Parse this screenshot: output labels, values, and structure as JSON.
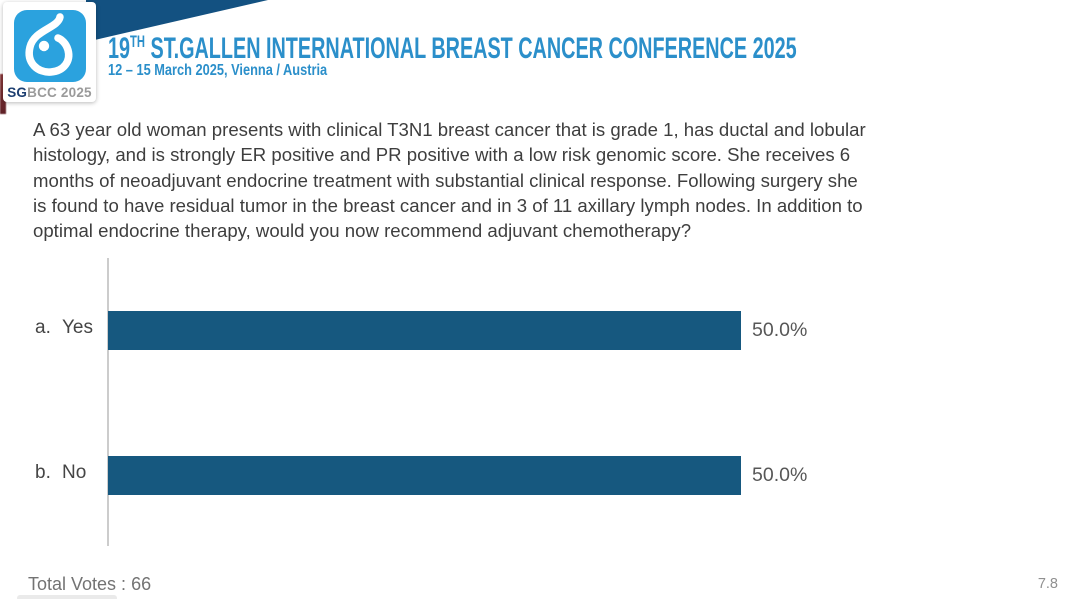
{
  "header": {
    "logo": {
      "symbol": "sgbcc-breast-drop",
      "badge_primary": "SG",
      "badge_secondary": "BCC 2025"
    },
    "title_number": "19",
    "title_ordinal": "TH",
    "title_rest": " ST.GALLEN INTERNATIONAL BREAST CANCER CONFERENCE 2025",
    "subtitle": "12 – 15 March 2025, Vienna / Austria",
    "accent_color": "#2b8fca",
    "banner_color": "#135181",
    "logo_square_color": "#2ba2de"
  },
  "question": {
    "lines": [
      "A 63 year old woman presents with clinical T3N1 breast cancer that is grade 1, has ductal and lobular",
      "histology, and is strongly ER positive and PR positive with a low risk genomic score. She receives 6",
      "months of neoadjuvant endocrine treatment with substantial clinical response. Following surgery she",
      "is found to have residual tumor in the breast cancer and in 3 of 11 axillary lymph nodes. In addition to",
      "optimal endocrine therapy, would you now recommend adjuvant chemotherapy?"
    ]
  },
  "chart_data": {
    "type": "bar",
    "orientation": "horizontal",
    "title": "",
    "categories": [
      "a.  Yes",
      "b.  No"
    ],
    "values": [
      50.0,
      50.0
    ],
    "options": [
      {
        "letter": "a.",
        "label": "Yes",
        "value": 50.0,
        "display": "50.0%"
      },
      {
        "letter": "b.",
        "label": "No",
        "value": 50.0,
        "display": "50.0%"
      }
    ],
    "axis_max": 50,
    "bar_color": "#16587f",
    "axis_line_color": "#cccccc",
    "grid": false,
    "legend": false
  },
  "footer": {
    "total_votes_label": "Total Votes :",
    "total_votes_value": "66",
    "slide_number": "7.8"
  }
}
